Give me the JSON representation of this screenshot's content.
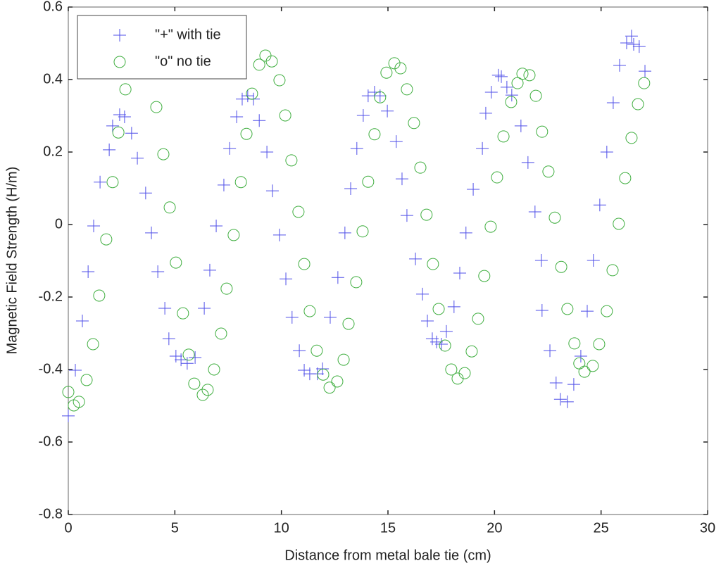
{
  "chart_data": {
    "type": "scatter",
    "xlabel": "Distance from metal bale tie (cm)",
    "ylabel": "Magnetic Field Strength (H/m)",
    "xlim": [
      0,
      30
    ],
    "xticks": [
      0,
      5,
      10,
      15,
      20,
      25,
      30
    ],
    "ylim": [
      -0.8,
      0.6
    ],
    "yticks": [
      -0.8,
      -0.6,
      -0.4,
      -0.2,
      0,
      0.2,
      0.4,
      0.6
    ],
    "legend": "upper left",
    "series": [
      {
        "name": "\"+\" with tie",
        "color": "#4f4fe8",
        "marker": "plus",
        "x": [
          0,
          0.33,
          0.66,
          0.93,
          1.19,
          1.49,
          1.92,
          2.08,
          2.41,
          2.64,
          2.97,
          3.24,
          3.63,
          3.9,
          4.2,
          4.53,
          4.72,
          5.05,
          5.29,
          5.58,
          5.95,
          6.38,
          6.64,
          6.94,
          7.3,
          7.57,
          7.9,
          8.16,
          8.42,
          8.69,
          8.96,
          9.32,
          9.58,
          9.91,
          10.21,
          10.5,
          10.84,
          11.07,
          11.33,
          11.69,
          11.93,
          12.29,
          12.65,
          12.98,
          13.25,
          13.54,
          13.84,
          14.07,
          14.37,
          14.63,
          14.97,
          15.39,
          15.66,
          15.89,
          16.29,
          16.62,
          16.85,
          17.08,
          17.28,
          17.51,
          17.74,
          18.1,
          18.37,
          18.66,
          19,
          19.43,
          19.59,
          19.85,
          20.18,
          20.32,
          20.58,
          20.81,
          21.24,
          21.57,
          21.9,
          22.2,
          22.23,
          22.6,
          22.89,
          23.09,
          23.42,
          23.72,
          24.05,
          24.35,
          24.64,
          24.94,
          25.27,
          25.57,
          25.87,
          26.2,
          26.43,
          26.53,
          26.79,
          27.06
        ],
        "values": [
          -0.528,
          -0.402,
          -0.266,
          -0.13,
          -0.004,
          0.117,
          0.206,
          0.272,
          0.303,
          0.297,
          0.252,
          0.183,
          0.087,
          -0.023,
          -0.13,
          -0.231,
          -0.315,
          -0.363,
          -0.373,
          -0.383,
          -0.367,
          -0.231,
          -0.126,
          -0.004,
          0.109,
          0.21,
          0.297,
          0.346,
          0.355,
          0.346,
          0.287,
          0.2,
          0.093,
          -0.029,
          -0.15,
          -0.256,
          -0.348,
          -0.402,
          -0.412,
          -0.412,
          -0.398,
          -0.256,
          -0.146,
          -0.023,
          0.099,
          0.21,
          0.301,
          0.355,
          0.365,
          0.355,
          0.313,
          0.229,
          0.126,
          0.025,
          -0.095,
          -0.192,
          -0.266,
          -0.315,
          -0.324,
          -0.33,
          -0.295,
          -0.227,
          -0.134,
          -0.023,
          0.097,
          0.21,
          0.307,
          0.365,
          0.412,
          0.408,
          0.379,
          0.357,
          0.272,
          0.171,
          0.035,
          -0.099,
          -0.237,
          -0.348,
          -0.437,
          -0.482,
          -0.489,
          -0.441,
          -0.363,
          -0.239,
          -0.099,
          0.054,
          0.2,
          0.336,
          0.439,
          0.501,
          0.52,
          0.497,
          0.491,
          0.423
        ]
      },
      {
        "name": "\"o\" no tie",
        "color": "#3fae3f",
        "marker": "circle",
        "x": [
          0,
          0.26,
          0.5,
          0.86,
          1.16,
          1.45,
          1.78,
          2.08,
          2.35,
          2.68,
          4.13,
          4.46,
          4.76,
          5.05,
          5.38,
          5.65,
          5.91,
          6.31,
          6.54,
          6.84,
          7.17,
          7.43,
          7.76,
          8.1,
          8.36,
          8.62,
          8.96,
          9.25,
          9.55,
          9.91,
          10.18,
          10.47,
          10.8,
          11.07,
          11.33,
          11.66,
          11.96,
          12.26,
          12.62,
          12.92,
          13.15,
          13.51,
          13.81,
          14.07,
          14.37,
          14.63,
          14.93,
          15.3,
          15.59,
          15.89,
          16.22,
          16.52,
          16.81,
          17.11,
          17.38,
          17.68,
          17.97,
          18.27,
          18.6,
          18.93,
          19.23,
          19.52,
          19.82,
          20.12,
          20.42,
          20.78,
          21.08,
          21.31,
          21.64,
          21.94,
          22.23,
          22.53,
          22.83,
          23.13,
          23.42,
          23.75,
          23.98,
          24.22,
          24.61,
          24.91,
          25.27,
          25.54,
          25.83,
          26.13,
          26.43,
          26.73,
          27.02
        ],
        "values": [
          -0.462,
          -0.499,
          -0.489,
          -0.429,
          -0.33,
          -0.196,
          -0.041,
          0.117,
          0.254,
          0.373,
          0.324,
          0.194,
          0.047,
          -0.105,
          -0.245,
          -0.359,
          -0.439,
          -0.47,
          -0.456,
          -0.4,
          -0.301,
          -0.177,
          -0.029,
          0.117,
          0.25,
          0.361,
          0.441,
          0.466,
          0.45,
          0.398,
          0.301,
          0.177,
          0.035,
          -0.109,
          -0.239,
          -0.348,
          -0.414,
          -0.45,
          -0.433,
          -0.373,
          -0.274,
          -0.159,
          -0.019,
          0.118,
          0.249,
          0.351,
          0.419,
          0.445,
          0.431,
          0.373,
          0.28,
          0.157,
          0.027,
          -0.109,
          -0.233,
          -0.334,
          -0.4,
          -0.425,
          -0.41,
          -0.35,
          -0.26,
          -0.142,
          -0.006,
          0.13,
          0.243,
          0.338,
          0.39,
          0.416,
          0.412,
          0.355,
          0.256,
          0.146,
          0.019,
          -0.117,
          -0.233,
          -0.328,
          -0.383,
          -0.406,
          -0.39,
          -0.33,
          -0.239,
          -0.126,
          0.002,
          0.128,
          0.239,
          0.332,
          0.39
        ]
      }
    ]
  }
}
